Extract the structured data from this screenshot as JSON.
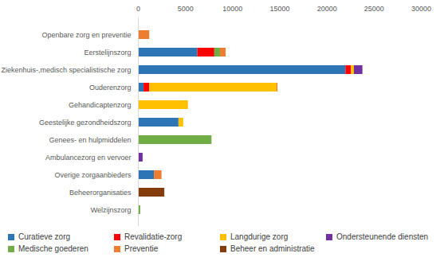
{
  "chart_data": {
    "type": "bar",
    "orientation": "horizontal",
    "stacked": true,
    "legend": "bottom",
    "categories": [
      "Openbare zorg en preventie",
      "Eerstelijnszorg",
      "Ziekenhuis-,medisch specialistische zorg",
      "Ouderenzorg",
      "Gehandicaptenzorg",
      "Geestelijke gezondheidszorg",
      "Genees- en hulpmiddelen",
      "Ambulancezorg en vervoer",
      "Overige zorgaanbieders",
      "Beheerorganisaties",
      "Welzijnszorg"
    ],
    "series": [
      {
        "name": "Curatieve zorg",
        "color": "#2e75b6",
        "values": [
          0,
          6300,
          22000,
          600,
          0,
          4300,
          0,
          0,
          1700,
          0,
          0
        ]
      },
      {
        "name": "Revalidatie-zorg",
        "color": "#ff0000",
        "values": [
          0,
          1800,
          600,
          600,
          0,
          0,
          0,
          0,
          0,
          0,
          0
        ]
      },
      {
        "name": "Langdurige zorg",
        "color": "#ffc000",
        "values": [
          0,
          0,
          300,
          13500,
          5300,
          500,
          0,
          0,
          0,
          0,
          0
        ]
      },
      {
        "name": "Ondersteunende diensten",
        "color": "#7030a0",
        "values": [
          0,
          0,
          900,
          0,
          0,
          0,
          0,
          500,
          0,
          0,
          0
        ]
      },
      {
        "name": "Medische goederen",
        "color": "#70ad47",
        "values": [
          0,
          600,
          0,
          0,
          0,
          0,
          7800,
          0,
          0,
          0,
          250
        ]
      },
      {
        "name": "Preventie",
        "color": "#ed7d31",
        "values": [
          1200,
          600,
          0,
          100,
          0,
          0,
          0,
          0,
          800,
          0,
          0
        ]
      },
      {
        "name": "Beheer en administratie",
        "color": "#843c0c",
        "values": [
          0,
          0,
          0,
          0,
          0,
          0,
          0,
          0,
          0,
          2800,
          0
        ]
      }
    ],
    "xlim": [
      0,
      30000
    ],
    "xticks": [
      0,
      5000,
      10000,
      15000,
      20000,
      25000,
      30000
    ],
    "grid": false
  }
}
